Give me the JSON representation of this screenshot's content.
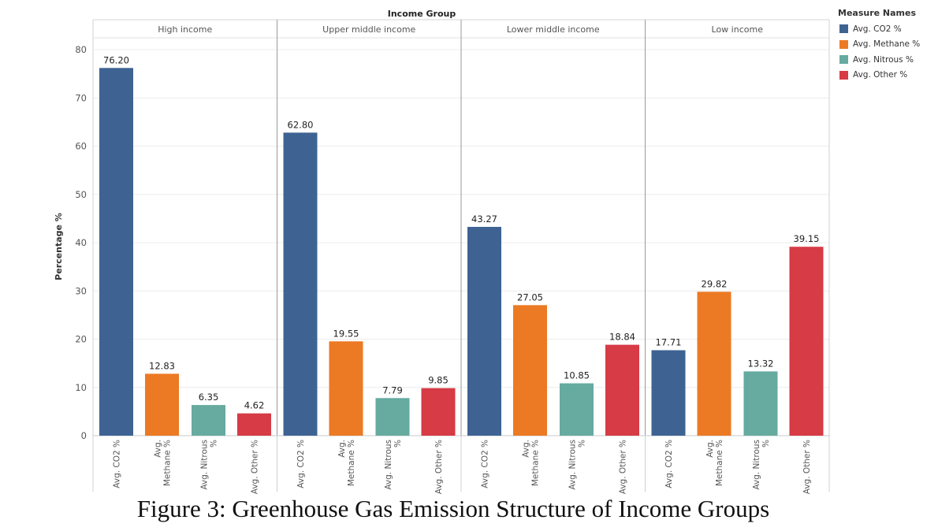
{
  "chart_data": {
    "type": "bar",
    "column_header": "Income Group",
    "ylabel": "Percentage %",
    "ylim": [
      0,
      80
    ],
    "yticks": [
      0,
      10,
      20,
      30,
      40,
      50,
      60,
      70,
      80
    ],
    "groups": [
      "High income",
      "Upper middle income",
      "Lower middle income",
      "Low income"
    ],
    "categories": [
      "Avg. CO2 %",
      "Avg. Methane %",
      "Avg. Nitrous %",
      "Avg. Other %"
    ],
    "series": [
      {
        "name": "Avg. CO2 %",
        "color": "#3e6393",
        "values": [
          76.2,
          62.8,
          43.27,
          17.71
        ]
      },
      {
        "name": "Avg. Methane %",
        "color": "#ec7a24",
        "values": [
          12.83,
          19.55,
          27.05,
          29.82
        ]
      },
      {
        "name": "Avg. Nitrous %",
        "color": "#66aaa0",
        "values": [
          6.35,
          7.79,
          10.85,
          13.32
        ]
      },
      {
        "name": "Avg. Other %",
        "color": "#d63b46",
        "values": [
          4.62,
          9.85,
          18.84,
          39.15
        ]
      }
    ],
    "value_labels": [
      [
        "76.20",
        "12.83",
        "6.35",
        "4.62"
      ],
      [
        "62.80",
        "19.55",
        "7.79",
        "9.85"
      ],
      [
        "43.27",
        "27.05",
        "10.85",
        "18.84"
      ],
      [
        "17.71",
        "29.82",
        "13.32",
        "39.15"
      ]
    ],
    "category_tick_lines": [
      [
        "Avg. CO2 %"
      ],
      [
        "Avg.",
        "Methane %"
      ],
      [
        "Avg. Nitrous",
        "%"
      ],
      [
        "Avg. Other %"
      ]
    ],
    "legend": {
      "title": "Measure Names",
      "position": "top-right"
    },
    "grid": true
  },
  "legend": {
    "title": "Measure Names",
    "items": [
      {
        "label": "Avg. CO2 %",
        "color": "#3e6393"
      },
      {
        "label": "Avg. Methane %",
        "color": "#ec7a24"
      },
      {
        "label": "Avg. Nitrous %",
        "color": "#66aaa0"
      },
      {
        "label": "Avg. Other %",
        "color": "#d63b46"
      }
    ]
  },
  "caption": "Figure 3: Greenhouse Gas Emission Structure of Income Groups"
}
